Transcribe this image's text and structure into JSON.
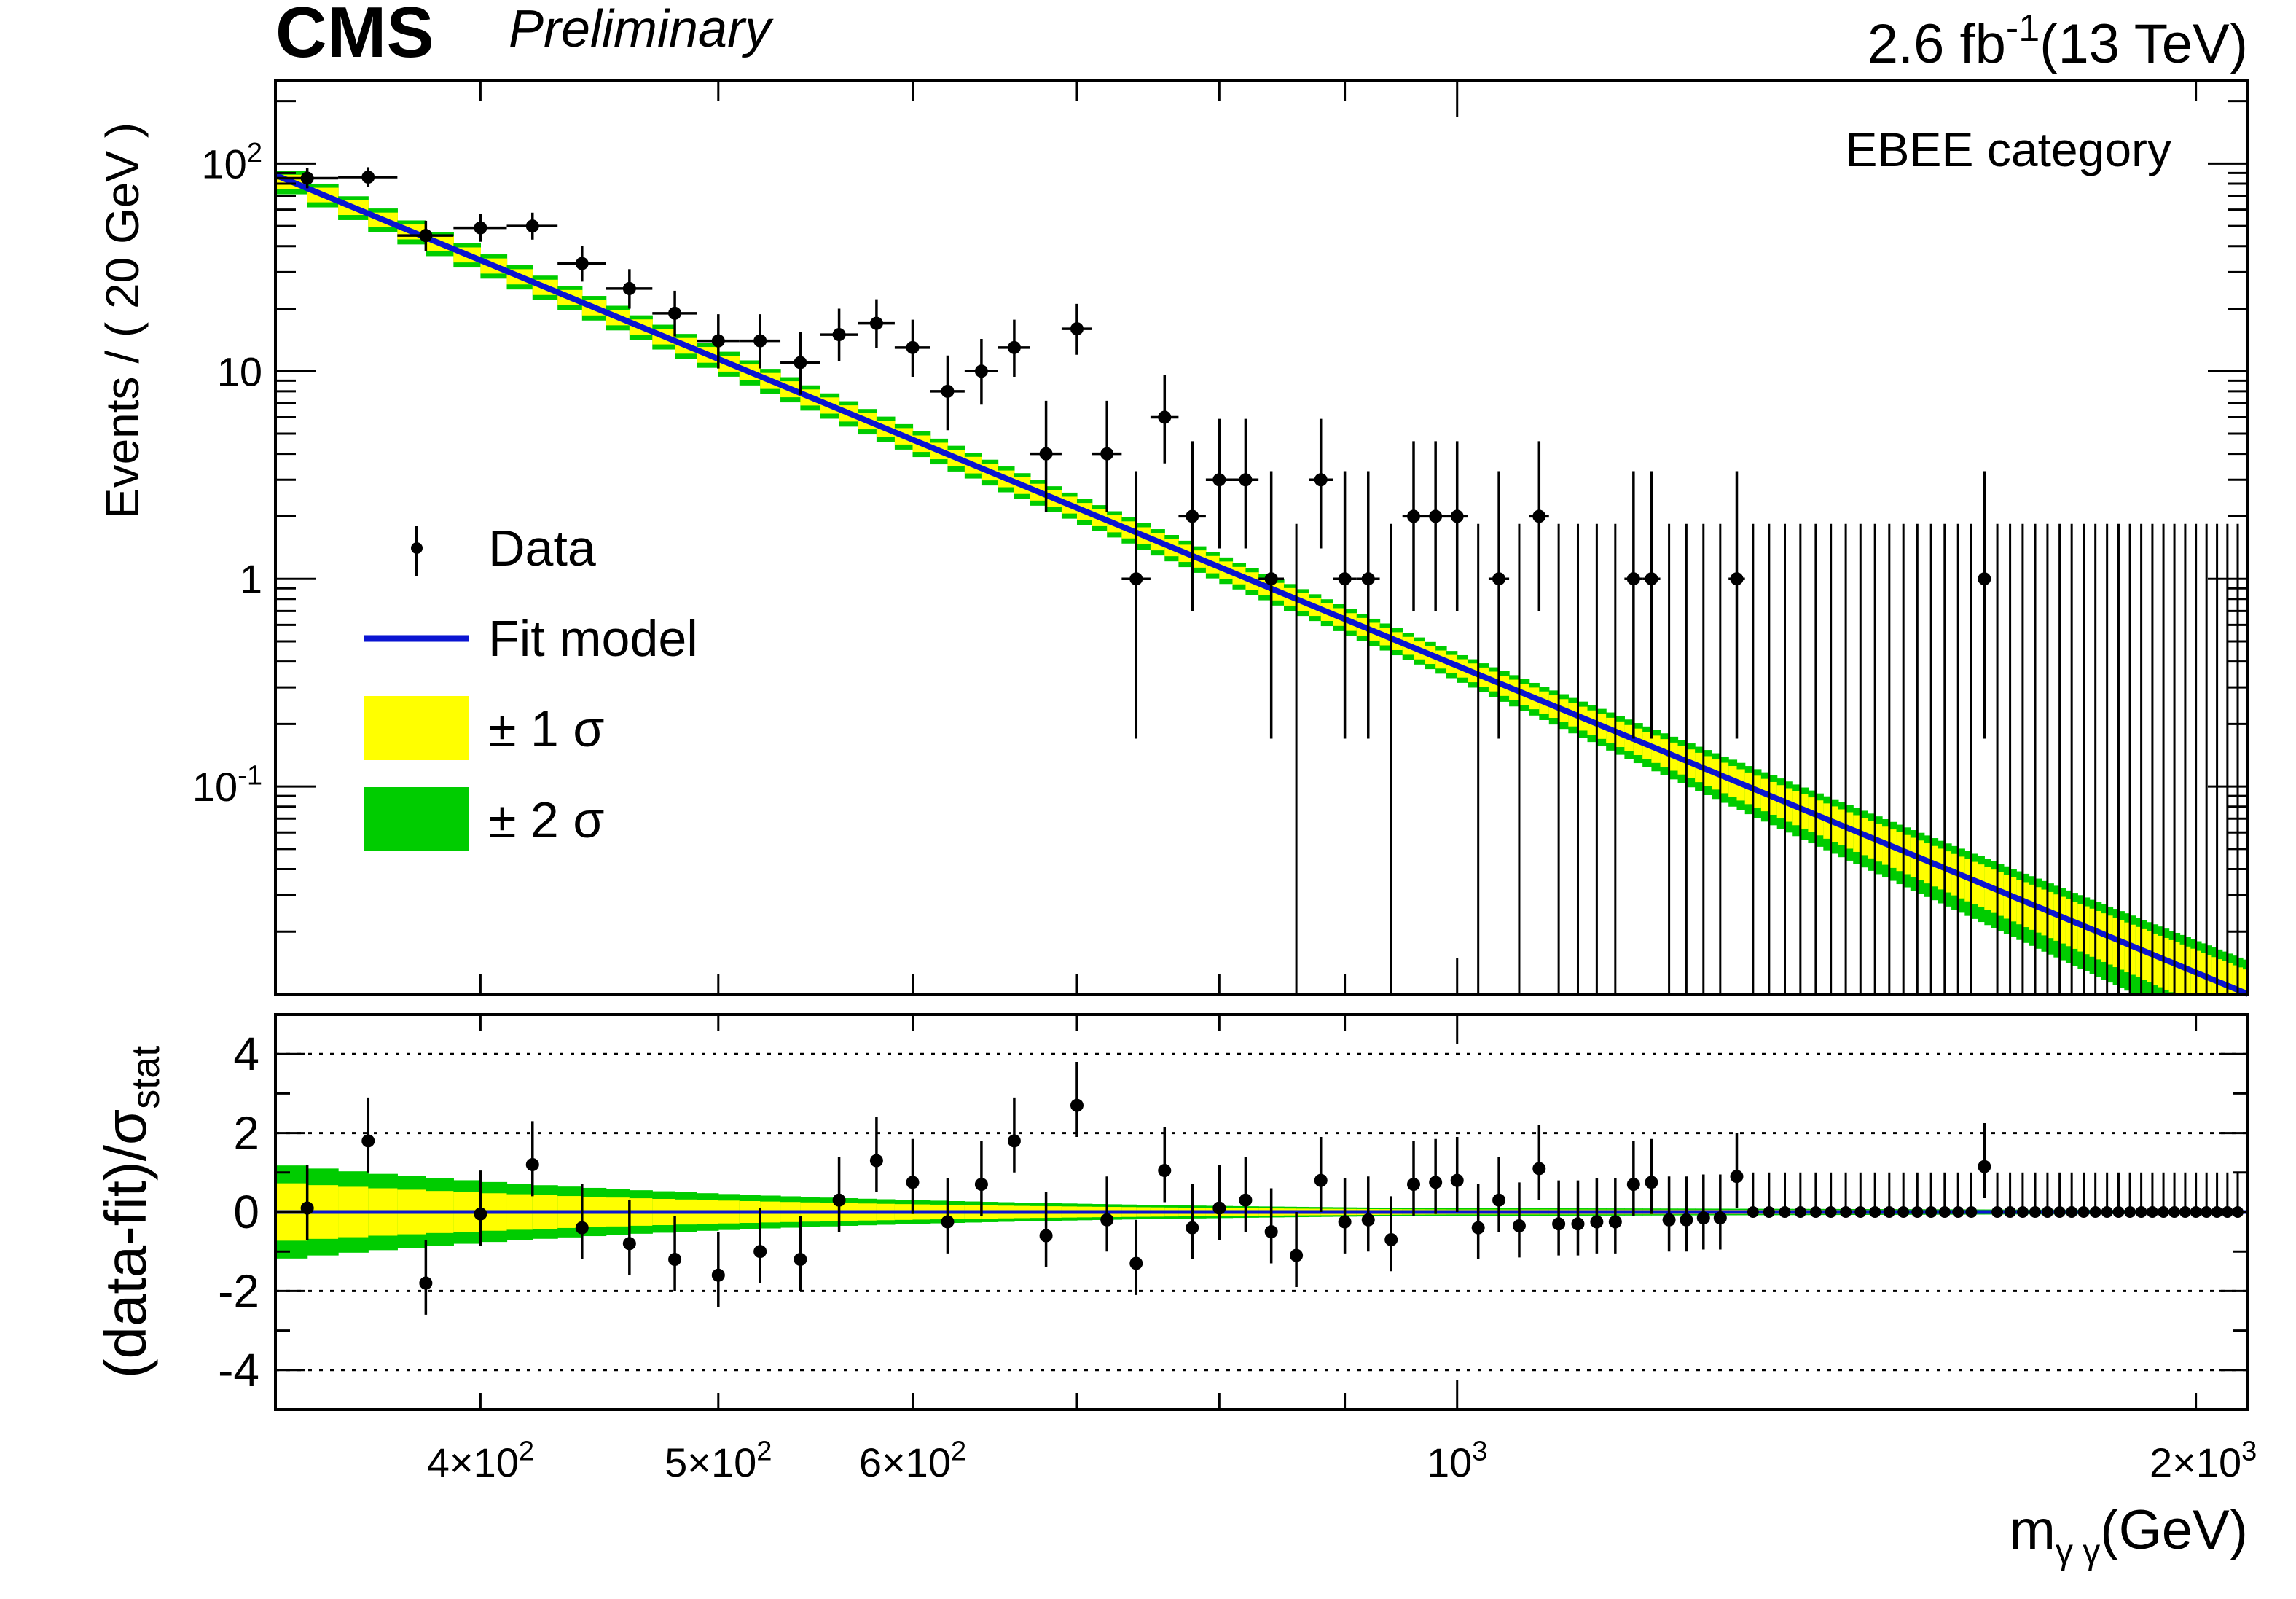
{
  "header": {
    "experiment": "CMS",
    "status": "Preliminary",
    "lumi": "2.6 fb",
    "lumi_exp": "-1",
    "energy": "(13 TeV)"
  },
  "category_label": "EBEE category",
  "colors": {
    "fit": "#0a14d2",
    "band1": "#ffff00",
    "band2": "#00cc00",
    "data": "#000000"
  },
  "chart_data": [
    {
      "type": "scatter",
      "panel": "main",
      "ylabel": "Events / ( 20 GeV )",
      "xscale": "log",
      "yscale": "log",
      "xlim": [
        330,
        2100
      ],
      "ylim": [
        0.01,
        250
      ],
      "yticks": [
        {
          "value": 100,
          "base": "10",
          "exp": "2"
        },
        {
          "value": 10,
          "base": "10",
          "exp": ""
        },
        {
          "value": 1,
          "base": "1",
          "exp": ""
        },
        {
          "value": 0.1,
          "base": "10",
          "exp": "-1"
        }
      ],
      "legend": {
        "position": "left",
        "entries": [
          {
            "label": "Data",
            "kind": "marker"
          },
          {
            "label": "Fit model",
            "kind": "line"
          },
          {
            "label": "± 1 σ",
            "kind": "band1"
          },
          {
            "label": "± 2 σ",
            "kind": "band2"
          }
        ]
      },
      "fit_model": {
        "x": [
          330,
          2100
        ],
        "y": [
          88,
          0.01
        ]
      },
      "band_relative_width": {
        "x": [
          330,
          1000,
          2100
        ],
        "one_sigma": [
          0.08,
          0.1,
          0.3
        ],
        "two_sigma": [
          0.13,
          0.15,
          0.45
        ]
      },
      "series": [
        {
          "name": "Data",
          "points": [
            {
              "x": 340,
              "y": 85,
              "lo": 9,
              "hi": 10
            },
            {
              "x": 360,
              "y": 86,
              "lo": 9,
              "hi": 10
            },
            {
              "x": 380,
              "y": 45,
              "lo": 7,
              "hi": 8
            },
            {
              "x": 400,
              "y": 49,
              "lo": 7,
              "hi": 8
            },
            {
              "x": 420,
              "y": 50,
              "lo": 7,
              "hi": 8
            },
            {
              "x": 440,
              "y": 33,
              "lo": 6,
              "hi": 7
            },
            {
              "x": 460,
              "y": 25,
              "lo": 5,
              "hi": 6
            },
            {
              "x": 480,
              "y": 19,
              "lo": 4.3,
              "hi": 5.4
            },
            {
              "x": 500,
              "y": 14,
              "lo": 3.7,
              "hi": 4.8
            },
            {
              "x": 520,
              "y": 14,
              "lo": 3.7,
              "hi": 4.8
            },
            {
              "x": 540,
              "y": 11,
              "lo": 3.3,
              "hi": 4.4
            },
            {
              "x": 560,
              "y": 15,
              "lo": 3.8,
              "hi": 5.0
            },
            {
              "x": 580,
              "y": 17,
              "lo": 4.1,
              "hi": 5.2
            },
            {
              "x": 600,
              "y": 13,
              "lo": 3.6,
              "hi": 4.7
            },
            {
              "x": 620,
              "y": 8,
              "lo": 2.8,
              "hi": 3.9
            },
            {
              "x": 640,
              "y": 10,
              "lo": 3.1,
              "hi": 4.3
            },
            {
              "x": 660,
              "y": 13,
              "lo": 3.6,
              "hi": 4.7
            },
            {
              "x": 680,
              "y": 4,
              "lo": 1.9,
              "hi": 3.2
            },
            {
              "x": 700,
              "y": 16,
              "lo": 4,
              "hi": 5.1
            },
            {
              "x": 720,
              "y": 4,
              "lo": 1.9,
              "hi": 3.2
            },
            {
              "x": 740,
              "y": 1,
              "lo": 0.83,
              "hi": 2.3
            },
            {
              "x": 760,
              "y": 6,
              "lo": 2.4,
              "hi": 3.6
            },
            {
              "x": 780,
              "y": 2,
              "lo": 1.3,
              "hi": 2.6
            },
            {
              "x": 800,
              "y": 3,
              "lo": 1.6,
              "hi": 2.9
            },
            {
              "x": 820,
              "y": 3,
              "lo": 1.6,
              "hi": 2.9
            },
            {
              "x": 840,
              "y": 1,
              "lo": 0.83,
              "hi": 2.3
            },
            {
              "x": 880,
              "y": 3,
              "lo": 1.6,
              "hi": 2.9
            },
            {
              "x": 900,
              "y": 1,
              "lo": 0.83,
              "hi": 2.3
            },
            {
              "x": 920,
              "y": 1,
              "lo": 0.83,
              "hi": 2.3
            },
            {
              "x": 960,
              "y": 2,
              "lo": 1.3,
              "hi": 2.6
            },
            {
              "x": 980,
              "y": 2,
              "lo": 1.3,
              "hi": 2.6
            },
            {
              "x": 1000,
              "y": 2,
              "lo": 1.3,
              "hi": 2.6
            },
            {
              "x": 1040,
              "y": 1,
              "lo": 0.83,
              "hi": 2.3
            },
            {
              "x": 1080,
              "y": 2,
              "lo": 1.3,
              "hi": 2.6
            },
            {
              "x": 1180,
              "y": 1,
              "lo": 0.83,
              "hi": 2.3
            },
            {
              "x": 1200,
              "y": 1,
              "lo": 0.83,
              "hi": 2.3
            },
            {
              "x": 1300,
              "y": 1,
              "lo": 0.83,
              "hi": 2.3
            },
            {
              "x": 1640,
              "y": 1,
              "lo": 0.83,
              "hi": 2.3
            }
          ]
        }
      ]
    },
    {
      "type": "scatter",
      "panel": "ratio",
      "ylabel": "(data-fit)/σ",
      "ylabel_sub": "stat",
      "xlabel": "m",
      "xlabel_sub": "γ γ",
      "xlabel_unit": "(GeV)",
      "xscale": "log",
      "xlim": [
        330,
        2100
      ],
      "ylim": [
        -5,
        5
      ],
      "yticks": [
        "4",
        "2",
        "0",
        "-2",
        "-4"
      ],
      "grid_lines_y": [
        4,
        2,
        -2,
        -4
      ],
      "xticks": [
        {
          "value": 400,
          "base": "4×10",
          "exp": "2"
        },
        {
          "value": 500,
          "base": "5×10",
          "exp": "2"
        },
        {
          "value": 600,
          "base": "6×10",
          "exp": "2"
        },
        {
          "value": 1000,
          "base": "10",
          "exp": "3"
        },
        {
          "value": 2000,
          "base": "2×10",
          "exp": "3"
        }
      ],
      "series": [
        {
          "name": "Pull",
          "points": [
            {
              "x": 340,
              "y": 0.1
            },
            {
              "x": 360,
              "y": 1.8
            },
            {
              "x": 380,
              "y": -1.8
            },
            {
              "x": 400,
              "y": -0.05
            },
            {
              "x": 420,
              "y": 1.2
            },
            {
              "x": 440,
              "y": -0.4
            },
            {
              "x": 460,
              "y": -0.8
            },
            {
              "x": 480,
              "y": -1.2
            },
            {
              "x": 500,
              "y": -1.6
            },
            {
              "x": 520,
              "y": -1.0
            },
            {
              "x": 540,
              "y": -1.2
            },
            {
              "x": 560,
              "y": 0.3
            },
            {
              "x": 580,
              "y": 1.3
            },
            {
              "x": 600,
              "y": 0.75
            },
            {
              "x": 620,
              "y": -0.25
            },
            {
              "x": 640,
              "y": 0.7
            },
            {
              "x": 660,
              "y": 1.8
            },
            {
              "x": 680,
              "y": -0.6
            },
            {
              "x": 700,
              "y": 2.7
            },
            {
              "x": 720,
              "y": -0.2
            },
            {
              "x": 740,
              "y": -1.3
            },
            {
              "x": 760,
              "y": 1.05
            },
            {
              "x": 780,
              "y": -0.4
            },
            {
              "x": 800,
              "y": 0.1
            },
            {
              "x": 820,
              "y": 0.3
            },
            {
              "x": 840,
              "y": -0.5
            },
            {
              "x": 860,
              "y": -1.1
            },
            {
              "x": 880,
              "y": 0.8
            },
            {
              "x": 900,
              "y": -0.25
            },
            {
              "x": 920,
              "y": -0.2
            },
            {
              "x": 940,
              "y": -0.7
            },
            {
              "x": 960,
              "y": 0.7
            },
            {
              "x": 980,
              "y": 0.75
            },
            {
              "x": 1000,
              "y": 0.8
            },
            {
              "x": 1020,
              "y": -0.4
            },
            {
              "x": 1040,
              "y": 0.3
            },
            {
              "x": 1060,
              "y": -0.35
            },
            {
              "x": 1080,
              "y": 1.1
            },
            {
              "x": 1100,
              "y": -0.3
            },
            {
              "x": 1120,
              "y": -0.3
            },
            {
              "x": 1140,
              "y": -0.25
            },
            {
              "x": 1160,
              "y": -0.25
            },
            {
              "x": 1180,
              "y": 0.7
            },
            {
              "x": 1200,
              "y": 0.75
            },
            {
              "x": 1220,
              "y": -0.2
            },
            {
              "x": 1240,
              "y": -0.2
            },
            {
              "x": 1260,
              "y": -0.15
            },
            {
              "x": 1280,
              "y": -0.15
            },
            {
              "x": 1300,
              "y": 0.9
            },
            {
              "x": 1640,
              "y": 1.15
            }
          ]
        }
      ]
    }
  ]
}
